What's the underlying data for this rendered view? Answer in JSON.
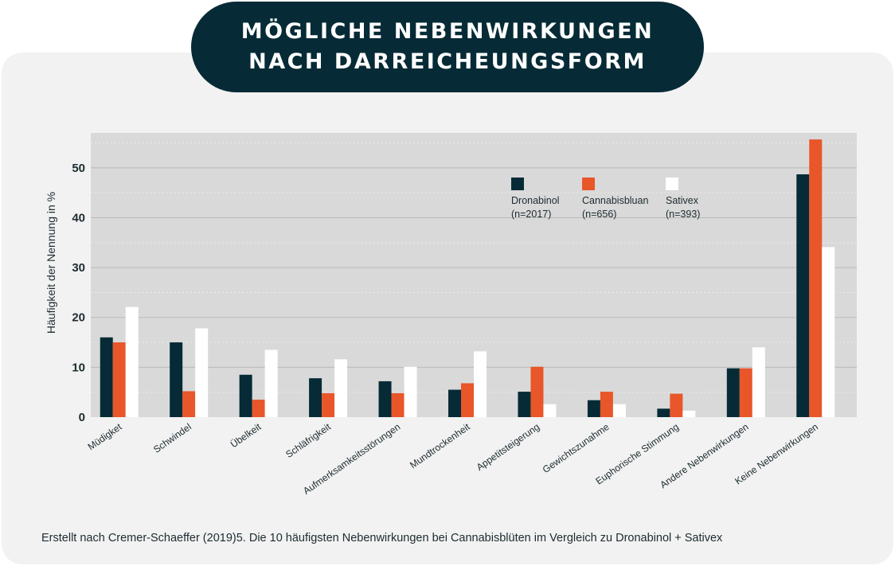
{
  "title": {
    "line1": "MÖGLICHE NEBENWIRKUNGEN",
    "line2": "NACH DARREICHEUNGSFORM"
  },
  "caption": "Erstellt nach Cremer-Schaeffer (2019)5. Die 10 häufigsten Nebenwirkungen bei Cannabisblüten im Vergleich zu Dronabinol + Sativex",
  "colors": {
    "background_card": "#f2f2f2",
    "plot_area": "#d9d9d9",
    "title_pill": "#062b36",
    "dronabinol": "#062b36",
    "cannabis": "#e8562a",
    "sativex": "#ffffff"
  },
  "chart_data": {
    "type": "bar",
    "ylabel": "Häufigkeit der Nennung in %",
    "xlabel": "",
    "ylim": [
      0,
      57
    ],
    "yticks": [
      0,
      10,
      20,
      30,
      40,
      50
    ],
    "grid": true,
    "legend_position": "top-right",
    "categories": [
      "Müdigket",
      "Schwindel",
      "Übelkeit",
      "Schläfrigkeit",
      "Aufmerksamkeitsstörungen",
      "Mundtrockenheit",
      "Appetitsteigerung",
      "Gewichtszunahme",
      "Euphorische Stimmung",
      "Andere Nebenwirkungen",
      "Keine Nebenwirkungen"
    ],
    "series": [
      {
        "name": "Dronabinol",
        "sub": "(n=2017)",
        "color": "#062b36",
        "values": [
          16,
          15,
          8.5,
          7.8,
          7.2,
          5.5,
          5.1,
          3.4,
          1.7,
          9.8,
          48.7
        ]
      },
      {
        "name": "Cannabisbluan",
        "sub": "(n=656)",
        "color": "#e8562a",
        "values": [
          15,
          5.2,
          3.5,
          4.8,
          4.8,
          6.8,
          10.1,
          5.1,
          4.7,
          9.8,
          55.7
        ]
      },
      {
        "name": "Sativex",
        "sub": "(n=393)",
        "color": "#ffffff",
        "values": [
          22.1,
          17.8,
          13.5,
          11.6,
          10.1,
          13.2,
          2.6,
          2.6,
          1.3,
          14.0,
          34.1
        ]
      }
    ]
  }
}
